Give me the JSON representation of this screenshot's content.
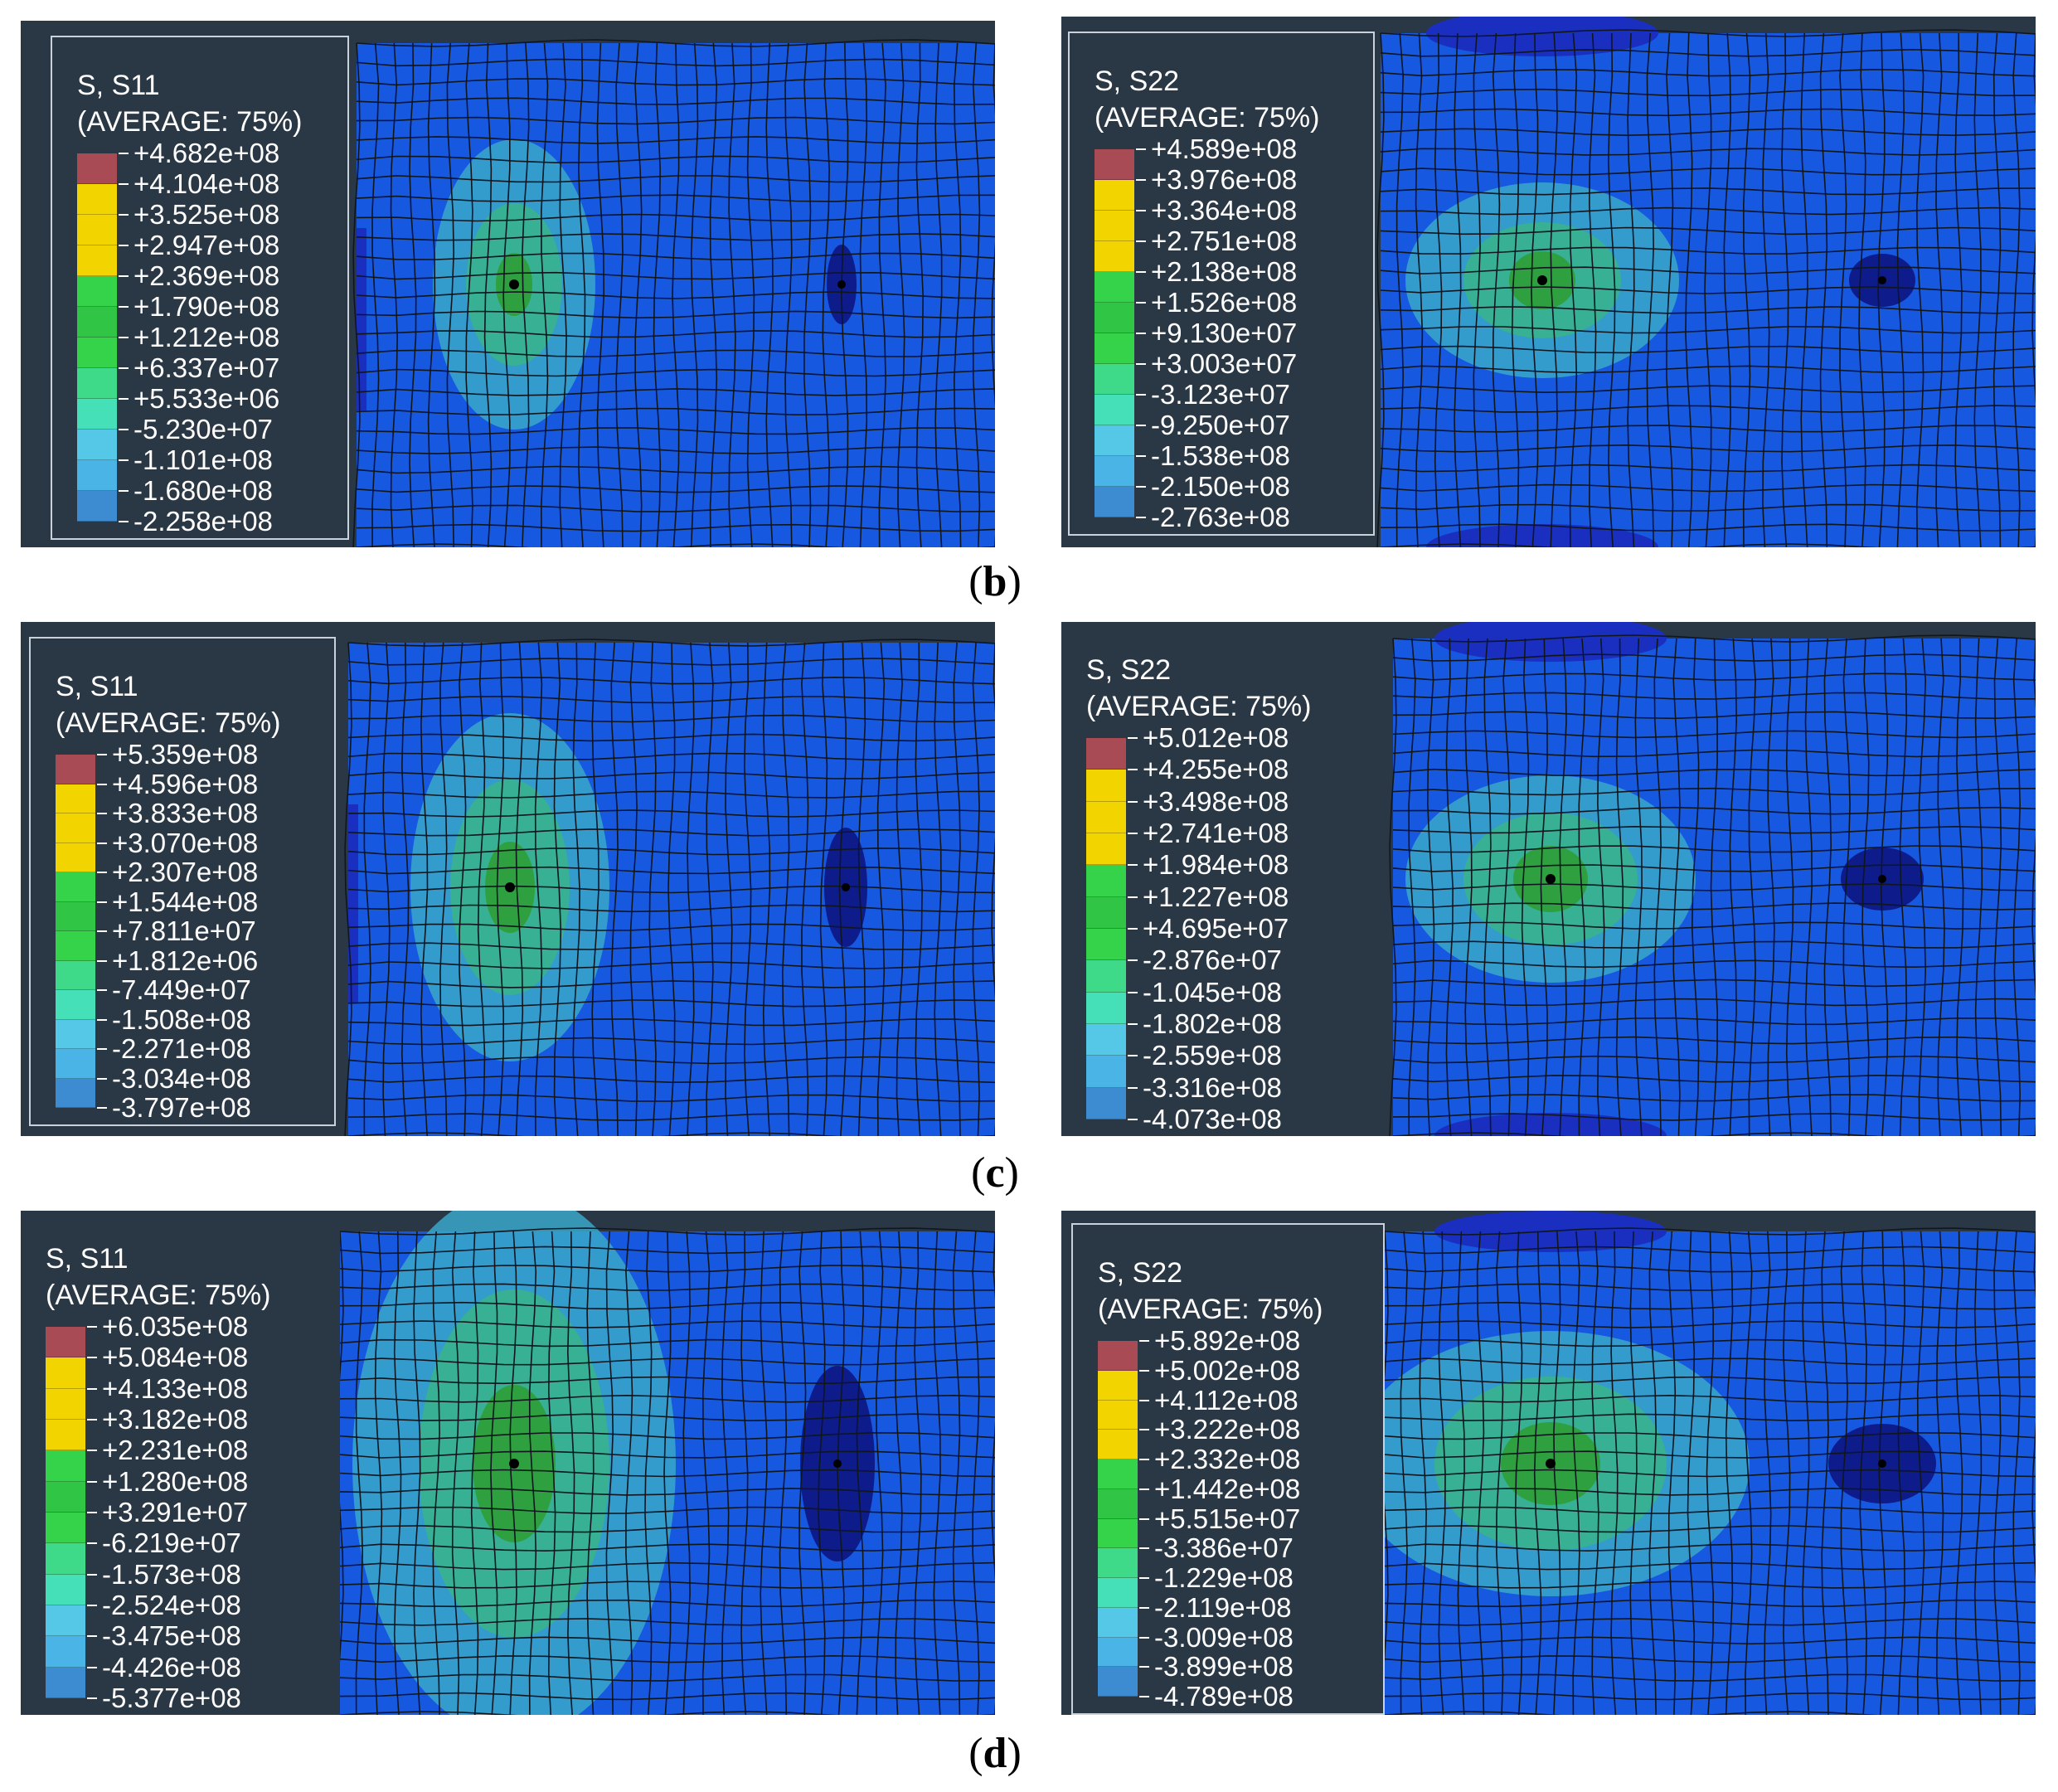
{
  "colors": {
    "levels": [
      "#a84b55",
      "#f2d400",
      "#f2d400",
      "#f2d400",
      "#34d34a",
      "#30c544",
      "#34d34a",
      "#3fd98a",
      "#45e0b8",
      "#55c8e8",
      "#4ab4e6",
      "#3d8bd0",
      "#0c1c9a"
    ],
    "mesh_base": "#1758e0",
    "panel_bg": "#2a3744",
    "grid": "#10161e"
  },
  "rows": [
    {
      "caption": "b",
      "left": {
        "title_line1": "S, S11",
        "title_line2": "(AVERAGE: 75%)",
        "labels": [
          "+4.682e+08",
          "+4.104e+08",
          "+3.525e+08",
          "+2.947e+08",
          "+2.369e+08",
          "+1.790e+08",
          "+1.212e+08",
          "+6.337e+07",
          "+5.533e+06",
          "-5.230e+07",
          "-1.101e+08",
          "-1.680e+08",
          "-2.258e+08"
        ]
      },
      "right": {
        "title_line1": "S, S22",
        "title_line2": "(AVERAGE: 75%)",
        "labels": [
          "+4.589e+08",
          "+3.976e+08",
          "+3.364e+08",
          "+2.751e+08",
          "+2.138e+08",
          "+1.526e+08",
          "+9.130e+07",
          "+3.003e+07",
          "-3.123e+07",
          "-9.250e+07",
          "-1.538e+08",
          "-2.150e+08",
          "-2.763e+08"
        ]
      }
    },
    {
      "caption": "c",
      "left": {
        "title_line1": "S, S11",
        "title_line2": "(AVERAGE: 75%)",
        "labels": [
          "+5.359e+08",
          "+4.596e+08",
          "+3.833e+08",
          "+3.070e+08",
          "+2.307e+08",
          "+1.544e+08",
          "+7.811e+07",
          "+1.812e+06",
          "-7.449e+07",
          "-1.508e+08",
          "-2.271e+08",
          "-3.034e+08",
          "-3.797e+08"
        ]
      },
      "right": {
        "title_line1": "S, S22",
        "title_line2": "(AVERAGE: 75%)",
        "labels": [
          "+5.012e+08",
          "+4.255e+08",
          "+3.498e+08",
          "+2.741e+08",
          "+1.984e+08",
          "+1.227e+08",
          "+4.695e+07",
          "-2.876e+07",
          "-1.045e+08",
          "-1.802e+08",
          "-2.559e+08",
          "-3.316e+08",
          "-4.073e+08"
        ]
      }
    },
    {
      "caption": "d",
      "left": {
        "title_line1": "S, S11",
        "title_line2": "(AVERAGE: 75%)",
        "labels": [
          "+6.035e+08",
          "+5.084e+08",
          "+4.133e+08",
          "+3.182e+08",
          "+2.231e+08",
          "+1.280e+08",
          "+3.291e+07",
          "-6.219e+07",
          "-1.573e+08",
          "-2.524e+08",
          "-3.475e+08",
          "-4.426e+08",
          "-5.377e+08"
        ]
      },
      "right": {
        "title_line1": "S, S22",
        "title_line2": "(AVERAGE: 75%)",
        "labels": [
          "+5.892e+08",
          "+5.002e+08",
          "+4.112e+08",
          "+3.222e+08",
          "+2.332e+08",
          "+1.442e+08",
          "+5.515e+07",
          "-3.386e+07",
          "-1.229e+08",
          "-2.119e+08",
          "-3.009e+08",
          "-3.899e+08",
          "-4.789e+08"
        ]
      }
    }
  ]
}
